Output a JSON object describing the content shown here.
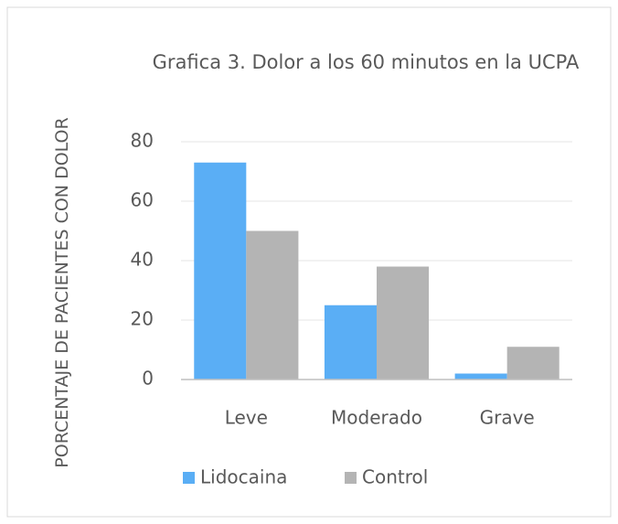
{
  "chart_data": {
    "type": "bar",
    "title": "Grafica 3. Dolor a los 60 minutos en la UCPA",
    "ylabel": "PORCENTAJE DE  PACIENTES CON DOLOR",
    "categories": [
      "Leve",
      "Moderado",
      "Grave"
    ],
    "series": [
      {
        "name": "Lidocaina",
        "color": "#5aaef5",
        "values": [
          73,
          25,
          2
        ]
      },
      {
        "name": "Control",
        "color": "#b4b4b4",
        "values": [
          50,
          38,
          11
        ]
      }
    ],
    "ylim": [
      0,
      80
    ],
    "yticks": [
      0,
      20,
      40,
      60,
      80
    ],
    "grid": true,
    "legend": "bottom"
  }
}
